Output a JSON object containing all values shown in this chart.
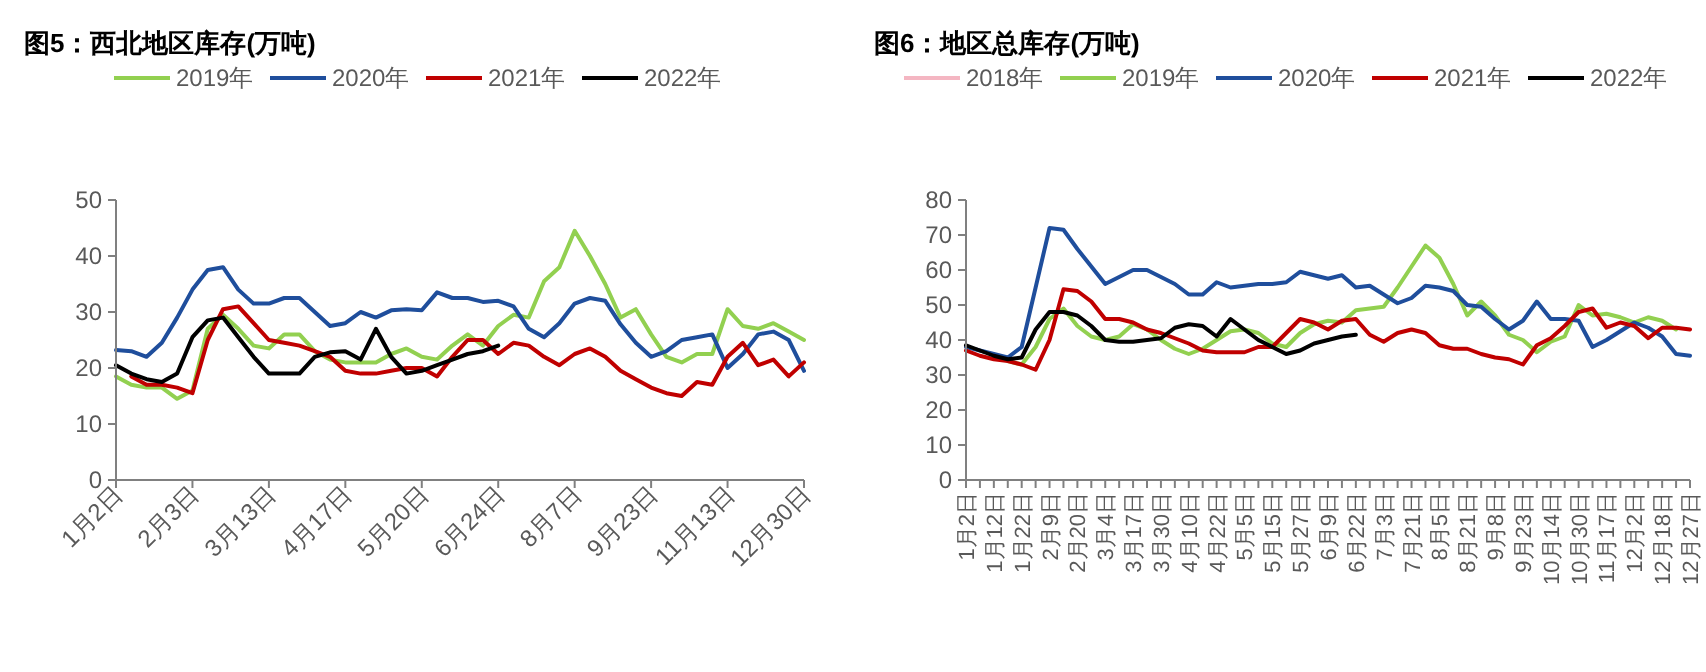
{
  "chart_data": [
    {
      "type": "line",
      "title": "图5：西北地区库存(万吨)",
      "legend": "top",
      "categories": [
        "1月2日",
        null,
        null,
        null,
        null,
        "2月3日",
        null,
        null,
        null,
        null,
        "3月13日",
        null,
        null,
        null,
        null,
        "4月17日",
        null,
        null,
        null,
        null,
        "5月20日",
        null,
        null,
        null,
        null,
        "6月24日",
        null,
        null,
        null,
        null,
        "8月7日",
        null,
        null,
        null,
        null,
        "9月23日",
        null,
        null,
        null,
        null,
        "11月13日",
        null,
        null,
        null,
        null,
        "12月30日"
      ],
      "ylim": [
        0,
        50
      ],
      "yticks": [
        0,
        10,
        20,
        30,
        40,
        50
      ],
      "series": [
        {
          "name": "2019年",
          "color": "#92d050",
          "values": [
            18.5,
            17,
            16.5,
            16.5,
            14.5,
            16,
            27,
            29.5,
            27,
            24,
            23.5,
            26,
            26,
            23,
            21.5,
            21,
            21,
            21,
            22.5,
            23.5,
            22,
            21.5,
            24,
            26,
            24,
            27.5,
            29.5,
            29,
            35.5,
            38,
            44.5,
            40,
            35,
            29,
            30.5,
            26,
            22,
            21,
            22.5,
            22.5,
            30.5,
            27.5,
            27,
            28,
            26.5,
            25
          ]
        },
        {
          "name": "2020年",
          "color": "#1f4e9c",
          "values": [
            23.2,
            23,
            22,
            24.5,
            29,
            34,
            37.5,
            38,
            34,
            31.5,
            31.5,
            32.5,
            32.5,
            30,
            27.5,
            28,
            30,
            29,
            30.3,
            30.5,
            30.3,
            33.5,
            32.5,
            32.5,
            31.8,
            32,
            31,
            27,
            25.5,
            28,
            31.5,
            32.5,
            32,
            27.8,
            24.5,
            22,
            23,
            25,
            25.5,
            26,
            20,
            22.5,
            26,
            26.5,
            25,
            19.5
          ]
        },
        {
          "name": "2021年",
          "color": "#c00000",
          "values": [
            null,
            18.5,
            17,
            17,
            16.5,
            15.5,
            25,
            30.5,
            31,
            28,
            25,
            24.5,
            24,
            23,
            22,
            19.5,
            19,
            19,
            19.5,
            20,
            20,
            18.5,
            22,
            25,
            25,
            22.5,
            24.5,
            24,
            22,
            20.5,
            22.5,
            23.5,
            22,
            19.5,
            18,
            16.5,
            15.5,
            15,
            17.5,
            17,
            22,
            24.5,
            20.5,
            21.5,
            18.5,
            21
          ]
        },
        {
          "name": "2022年",
          "color": "#000000",
          "values": [
            20.5,
            19,
            18,
            17.5,
            19,
            25.5,
            28.5,
            29,
            25.5,
            22,
            19,
            19,
            19,
            22,
            22.8,
            23,
            21.5,
            27,
            22,
            19,
            19.5,
            20.5,
            21.5,
            22.5,
            23,
            24,
            null,
            null,
            null,
            null,
            null,
            null,
            null,
            null,
            null,
            null,
            null,
            null,
            null,
            null,
            null,
            null,
            null,
            null,
            null,
            null
          ]
        }
      ]
    },
    {
      "type": "line",
      "title": "图6：地区总库存(万吨)",
      "legend": "top",
      "categories": [
        "1月2日",
        null,
        "1月12日",
        null,
        "1月22日",
        null,
        "2月9日",
        null,
        "2月20日",
        null,
        "3月4日",
        null,
        "3月17日",
        null,
        "3月30日",
        null,
        "4月10日",
        null,
        "4月22日",
        null,
        "5月5日",
        null,
        "5月15日",
        null,
        "5月27日",
        null,
        "6月9日",
        null,
        "6月22日",
        null,
        "7月3日",
        null,
        "7月21日",
        null,
        "8月5日",
        null,
        "8月21日",
        null,
        "9月8日",
        null,
        "9月23日",
        null,
        "10月14日",
        null,
        "10月30日",
        null,
        "11月17日",
        null,
        "12月2日",
        null,
        "12月18日",
        null,
        "12月27日"
      ],
      "ylim": [
        0,
        80
      ],
      "yticks": [
        0,
        10,
        20,
        30,
        40,
        50,
        60,
        70,
        80
      ],
      "series": [
        {
          "name": "2018年",
          "color": "#f4b6c2",
          "values": [
            null,
            null,
            null,
            null,
            null,
            null,
            null,
            null,
            null,
            null,
            null,
            null,
            null,
            null,
            null,
            null,
            null,
            null,
            null,
            null,
            null,
            null,
            null,
            null,
            null,
            null,
            null,
            null,
            null,
            null,
            null,
            null,
            null,
            null,
            null,
            null,
            null,
            null,
            null,
            null,
            null,
            null,
            null,
            null,
            null,
            null,
            null,
            null,
            null,
            null,
            null,
            null,
            null
          ]
        },
        {
          "name": "2019年",
          "color": "#92d050",
          "values": [
            null,
            null,
            null,
            34,
            33,
            38,
            46,
            49,
            44,
            41,
            40,
            41,
            44.5,
            43,
            40,
            37.5,
            36,
            37.5,
            40,
            42.5,
            43,
            42,
            39,
            38,
            42,
            44.5,
            45.5,
            45,
            48.5,
            49,
            49.5,
            55,
            61,
            67,
            63.5,
            56,
            47,
            51,
            47,
            41.5,
            40,
            36.5,
            39.5,
            41,
            50,
            47,
            47.5,
            46.5,
            45,
            46.5,
            45.5,
            43,
            null
          ]
        },
        {
          "name": "2020年",
          "color": "#1f4e9c",
          "values": [
            38,
            37,
            36,
            35,
            38,
            55,
            72,
            71.5,
            66,
            61,
            56,
            58,
            60,
            60,
            58,
            56,
            53,
            53,
            56.5,
            55,
            55.5,
            56,
            56,
            56.5,
            59.5,
            58.5,
            57.5,
            58.5,
            55,
            55.5,
            53,
            50.5,
            52,
            55.5,
            55,
            54,
            50,
            49.5,
            46,
            43,
            45.5,
            51,
            46,
            46,
            45.5,
            38,
            40,
            42.5,
            45,
            43.5,
            41,
            36,
            35.5
          ]
        },
        {
          "name": "2021年",
          "color": "#c00000",
          "values": [
            37,
            35.5,
            34.5,
            34,
            33,
            31.5,
            40,
            54.5,
            54,
            51,
            46,
            46,
            45,
            43,
            42,
            40.5,
            39,
            37,
            36.5,
            36.5,
            36.5,
            38,
            38,
            42,
            46,
            45,
            43,
            45.5,
            46,
            41.5,
            39.5,
            42,
            43,
            42,
            38.5,
            37.5,
            37.5,
            36,
            35,
            34.5,
            33,
            38.5,
            40.5,
            44,
            48,
            49,
            43.5,
            45,
            44,
            40.5,
            43.5,
            43.5,
            43
          ]
        },
        {
          "name": "2022年",
          "color": "#000000",
          "values": [
            38.5,
            37,
            35.5,
            34.5,
            35,
            43,
            48,
            48,
            47,
            44,
            40,
            39.5,
            39.5,
            40,
            40.5,
            43.5,
            44.5,
            44,
            41,
            46,
            43,
            40,
            38,
            36,
            37,
            39,
            40,
            41,
            41.5,
            null,
            null,
            null,
            null,
            null,
            null,
            null,
            null,
            null,
            null,
            null,
            null,
            null,
            null,
            null,
            null,
            null,
            null,
            null,
            null,
            null,
            null,
            null,
            null
          ]
        }
      ]
    }
  ]
}
